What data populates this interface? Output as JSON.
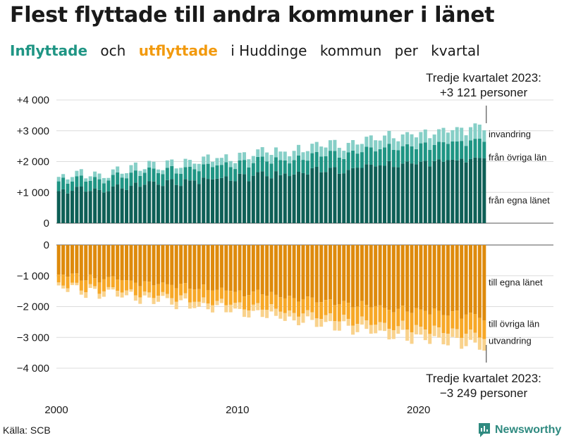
{
  "header": {
    "title": "Flest flyttade till andra kommuner i länet",
    "subtitle_in": "Inflyttade",
    "subtitle_and": "och",
    "subtitle_out": "utflyttade",
    "subtitle_rest_1": "i Huddinge",
    "subtitle_rest_2": "kommun",
    "subtitle_rest_3": "per",
    "subtitle_rest_4": "kvartal"
  },
  "colors": {
    "in_local": "#0e5f56",
    "in_county": "#1f9584",
    "in_immigration": "#86cfc7",
    "out_local": "#de8a0c",
    "out_county": "#f7a827",
    "out_emigration": "#f9d28c",
    "accent_in": "#1f9584",
    "accent_out": "#f29a0e"
  },
  "chart_data": {
    "type": "bar",
    "stacked": true,
    "title": "Flest flyttade till andra kommuner i länet",
    "period": "quarterly",
    "start_year": 2000,
    "end_quarter": "2023 Q3",
    "x_ticks": [
      "2000",
      "2010",
      "2020"
    ],
    "panels": [
      {
        "name": "Inflyttade",
        "ylim": [
          0,
          4200
        ],
        "y_ticks": [
          0,
          1000,
          2000,
          3000,
          4000
        ],
        "y_tick_labels": [
          "0",
          "+1 000",
          "+2 000",
          "+3 000",
          "+4 000"
        ],
        "series": [
          {
            "name": "från egna länet",
            "base": 1000,
            "trend_end": 2120,
            "amplitude": 130
          },
          {
            "name": "från övriga län",
            "base": 330,
            "trend_end": 600,
            "amplitude": 60
          },
          {
            "name": "invandring",
            "base": 120,
            "trend_end": 430,
            "amplitude": 70
          }
        ],
        "annotations": [
          {
            "label": "invandring",
            "value": 2900
          },
          {
            "label": "från övriga län",
            "value": 2150
          },
          {
            "label": "från egna länet",
            "value": 750
          }
        ],
        "latest_label": "Tredje kvartalet 2023:",
        "latest_value": "+3 121 personer"
      },
      {
        "name": "Utflyttade",
        "ylim": [
          -4200,
          0
        ],
        "y_ticks": [
          0,
          -1000,
          -2000,
          -3000,
          -4000
        ],
        "y_tick_labels": [
          "0",
          "−1 000",
          "−2 000",
          "−3 000",
          "−4 000"
        ],
        "series": [
          {
            "name": "till egna länet",
            "base": 900,
            "trend_end": 2300,
            "amplitude": 130
          },
          {
            "name": "till övriga län",
            "base": 300,
            "trend_end": 600,
            "amplitude": 70
          },
          {
            "name": "utvandring",
            "base": 100,
            "trend_end": 340,
            "amplitude": 60
          }
        ],
        "annotations": [
          {
            "label": "till egna länet",
            "value": -1200
          },
          {
            "label": "till övriga län",
            "value": -2550
          },
          {
            "label": "utvandring",
            "value": -3100
          }
        ],
        "latest_label": "Tredje kvartalet 2023:",
        "latest_value": "−3 249 personer"
      }
    ]
  },
  "footer": {
    "source": "Källa: SCB",
    "brand": "Newsworthy"
  }
}
